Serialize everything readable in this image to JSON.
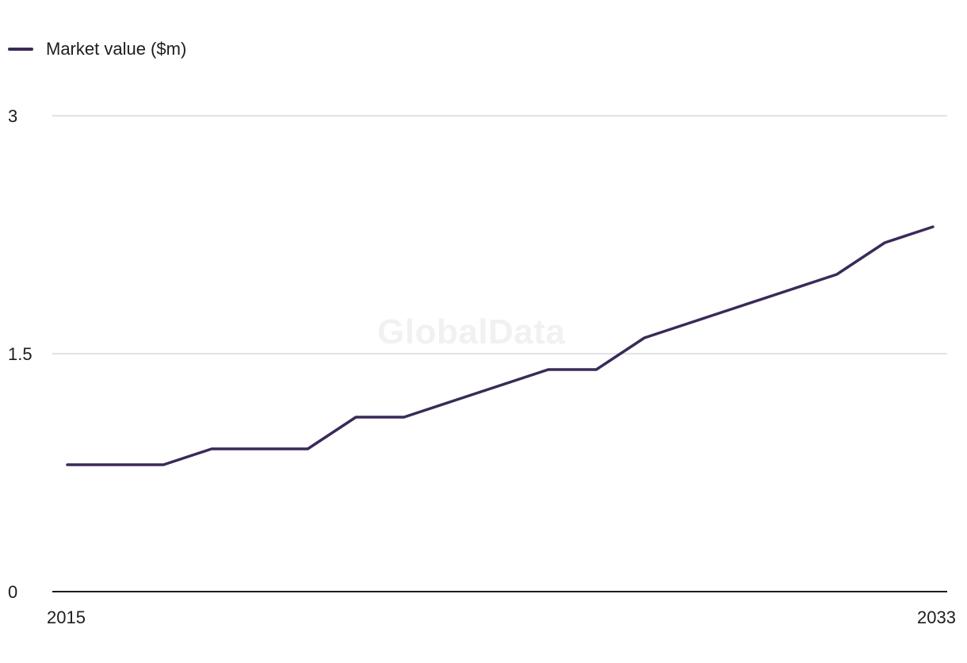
{
  "watermark": "GlobalData",
  "legend": {
    "label": "Market value ($m)"
  },
  "colors": {
    "series": "#3a2a5a",
    "grid": "#d9d9df",
    "axis": "#1d1d1f",
    "tick_text": "#1d1d1f"
  },
  "chart_data": {
    "type": "line",
    "title": "",
    "xlabel": "",
    "ylabel": "",
    "x": [
      2015,
      2016,
      2017,
      2018,
      2019,
      2020,
      2021,
      2022,
      2023,
      2024,
      2025,
      2026,
      2027,
      2028,
      2029,
      2030,
      2031,
      2032,
      2033
    ],
    "series": [
      {
        "name": "Market value ($m)",
        "values": [
          0.8,
          0.8,
          0.8,
          0.9,
          0.9,
          0.9,
          1.1,
          1.1,
          1.2,
          1.3,
          1.4,
          1.4,
          1.6,
          1.7,
          1.8,
          1.9,
          2.0,
          2.2,
          2.3
        ]
      }
    ],
    "xlim": [
      2015,
      2033
    ],
    "ylim": [
      0,
      3
    ],
    "y_ticks": [
      "0",
      "1.5",
      "3"
    ],
    "x_ticks": [
      "2015",
      "2033"
    ],
    "grid": true,
    "legend_position": "top-left"
  }
}
